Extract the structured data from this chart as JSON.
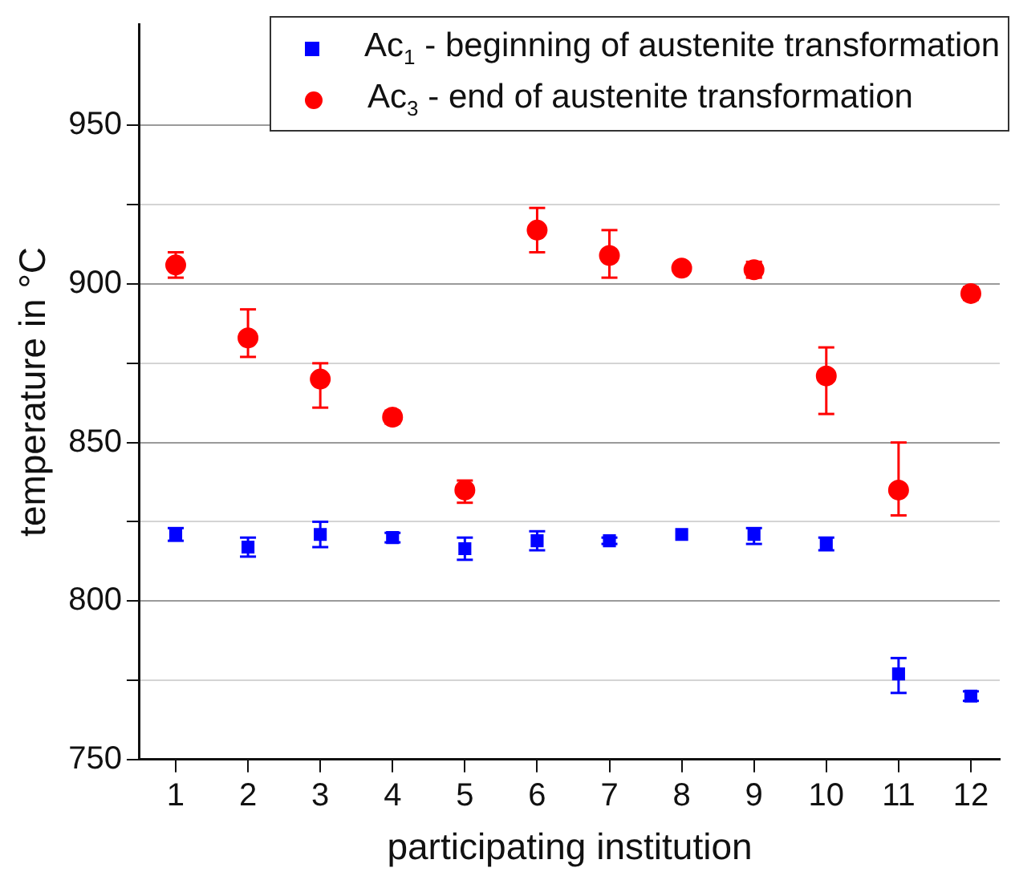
{
  "chart_data": {
    "type": "scatter",
    "xlabel": "participating institution",
    "ylabel": "temperature in °C",
    "x": [
      1,
      2,
      3,
      4,
      5,
      6,
      7,
      8,
      9,
      10,
      11,
      12
    ],
    "xlim": [
      0.5,
      12.4
    ],
    "xticks": [
      1,
      2,
      3,
      4,
      5,
      6,
      7,
      8,
      9,
      10,
      11,
      12
    ],
    "ylim": [
      750,
      982
    ],
    "yticks": [
      750,
      {
        "value": 775,
        "label": null
      },
      800,
      {
        "value": 825,
        "label": null
      },
      850,
      {
        "value": 875,
        "label": null
      },
      900,
      {
        "value": 925,
        "label": null
      },
      950
    ],
    "grid": "y",
    "legend": "top right",
    "series": [
      {
        "name": "Ac$_{1}$ - beginning of austenite transformation",
        "color": "#0000ff",
        "marker": "square",
        "values": [
          821,
          817,
          821,
          820,
          816.5,
          819,
          819,
          821,
          821,
          818,
          777,
          770
        ],
        "errors": [
          2,
          [
            814,
            820
          ],
          [
            817,
            825
          ],
          1.5,
          [
            813,
            820
          ],
          [
            816,
            822
          ],
          1,
          null,
          [
            818,
            823
          ],
          2,
          [
            771,
            782
          ],
          1.5
        ]
      },
      {
        "name": "Ac$_{3}$ - end of austenite transformation",
        "color": "#ff0000",
        "marker": "circle",
        "values": [
          906,
          883,
          870,
          858,
          835,
          917,
          909,
          905,
          904.5,
          871,
          835,
          897
        ],
        "errors": [
          4,
          [
            877,
            892
          ],
          [
            861,
            875
          ],
          2,
          [
            831,
            838
          ],
          [
            910,
            924
          ],
          [
            902,
            917
          ],
          null,
          [
            902,
            907
          ],
          [
            859,
            880
          ],
          [
            827,
            850
          ],
          2
        ]
      }
    ]
  }
}
